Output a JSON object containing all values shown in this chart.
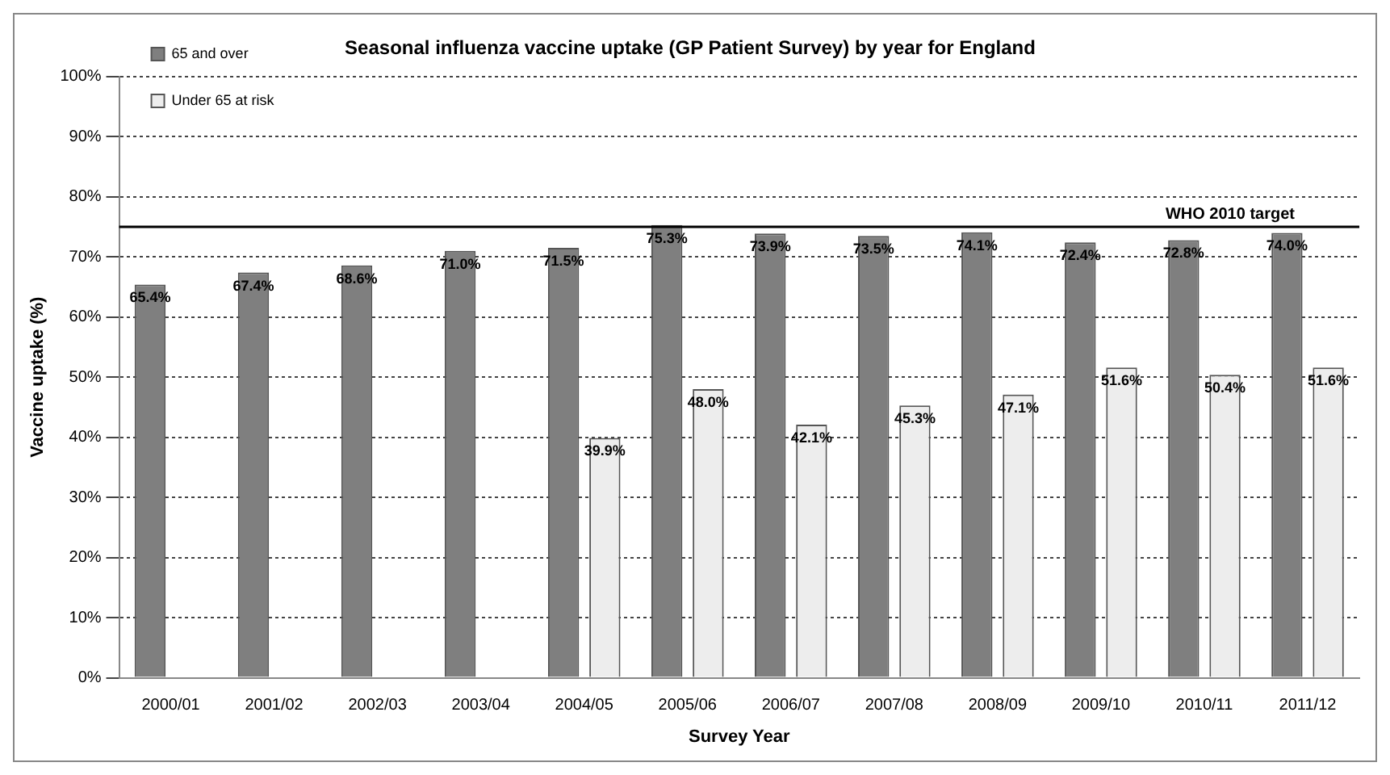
{
  "chart_data": {
    "type": "bar",
    "title": "Seasonal influenza vaccine uptake (GP Patient Survey) by year for England",
    "xlabel": "Survey Year",
    "ylabel": "Vaccine uptake (%)",
    "categories": [
      "2000/01",
      "2001/02",
      "2002/03",
      "2003/04",
      "2004/05",
      "2005/06",
      "2006/07",
      "2007/08",
      "2008/09",
      "2009/10",
      "2010/11",
      "2011/12"
    ],
    "series": [
      {
        "name": "65 and over",
        "color": "#7f7f7f",
        "values": [
          65.4,
          67.4,
          68.6,
          71.0,
          71.5,
          75.3,
          73.9,
          73.5,
          74.1,
          72.4,
          72.8,
          74.0
        ],
        "value_labels": [
          "65.4%",
          "67.4%",
          "68.6%",
          "71.0%",
          "71.5%",
          "75.3%",
          "73.9%",
          "73.5%",
          "74.1%",
          "72.4%",
          "72.8%",
          "74.0%"
        ]
      },
      {
        "name": "Under 65 at risk",
        "color": "#ededed",
        "values": [
          null,
          null,
          null,
          null,
          39.9,
          48.0,
          42.1,
          45.3,
          47.1,
          51.6,
          50.4,
          51.6
        ],
        "value_labels": [
          null,
          null,
          null,
          null,
          "39.9%",
          "48.0%",
          "42.1%",
          "45.3%",
          "47.1%",
          "51.6%",
          "50.4%",
          "51.6%"
        ]
      }
    ],
    "ylim": [
      0,
      100
    ],
    "yticks": [
      {
        "value": 0,
        "label": "0%"
      },
      {
        "value": 10,
        "label": "10%"
      },
      {
        "value": 20,
        "label": "20%"
      },
      {
        "value": 30,
        "label": "30%"
      },
      {
        "value": 40,
        "label": "40%"
      },
      {
        "value": 50,
        "label": "50%"
      },
      {
        "value": 60,
        "label": "60%"
      },
      {
        "value": 70,
        "label": "70%"
      },
      {
        "value": 80,
        "label": "80%"
      },
      {
        "value": 90,
        "label": "90%"
      },
      {
        "value": 100,
        "label": "100%"
      }
    ],
    "ref_lines": [
      {
        "axis": "y",
        "value": 75,
        "label": "WHO 2010 target",
        "color": "#000000"
      }
    ],
    "grid": "y",
    "legend": "top left"
  }
}
